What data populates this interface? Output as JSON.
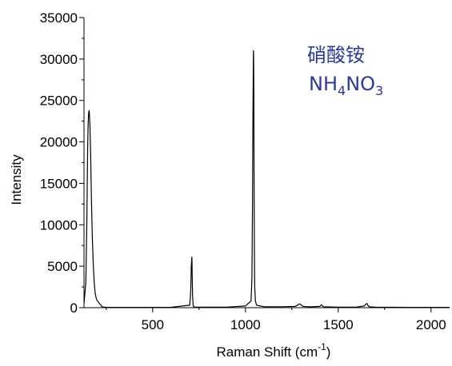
{
  "chart_data": {
    "type": "line",
    "title": "",
    "xlabel": "Raman Shift (cm",
    "xlabel_sup": "-1",
    "xlabel_suffix": ")",
    "ylabel": "Intensity",
    "xlim": [
      130,
      2100
    ],
    "ylim": [
      0,
      35000
    ],
    "x_ticks": [
      500,
      1000,
      1500,
      2000
    ],
    "x_tick_labels": [
      "500",
      "1000",
      "1500",
      "2000"
    ],
    "y_ticks": [
      0,
      5000,
      10000,
      15000,
      20000,
      25000,
      30000,
      35000
    ],
    "y_tick_labels": [
      "0",
      "5000",
      "10000",
      "15000",
      "20000",
      "25000",
      "30000",
      "35000"
    ],
    "grid": false,
    "line_color": "#000000",
    "series": [
      {
        "x": [
          130,
          140,
          145,
          150,
          153,
          155,
          158,
          162,
          166,
          170,
          175,
          180,
          185,
          190,
          195,
          200,
          210,
          215,
          220,
          225,
          230,
          235,
          240,
          250,
          300,
          400,
          500,
          600,
          700,
          705,
          708,
          711,
          712,
          713,
          715,
          718,
          722,
          730,
          800,
          900,
          1000,
          1030,
          1035,
          1038,
          1040,
          1042,
          1043,
          1044,
          1045,
          1046,
          1048,
          1050,
          1054,
          1060,
          1100,
          1200,
          1270,
          1280,
          1290,
          1300,
          1310,
          1350,
          1400,
          1405,
          1410,
          1415,
          1420,
          1500,
          1600,
          1640,
          1650,
          1655,
          1660,
          1670,
          1700,
          1800,
          1900,
          2000,
          2100
        ],
        "y": [
          500,
          3000,
          10000,
          19500,
          22500,
          23500,
          23800,
          22000,
          18000,
          13000,
          8500,
          5200,
          3000,
          1800,
          1200,
          900,
          600,
          450,
          350,
          150,
          100,
          80,
          70,
          50,
          40,
          40,
          40,
          50,
          300,
          2000,
          5000,
          6100,
          5600,
          4000,
          1500,
          300,
          100,
          60,
          60,
          70,
          200,
          800,
          3500,
          12000,
          22000,
          29000,
          31000,
          30500,
          26000,
          18000,
          7000,
          2500,
          800,
          300,
          120,
          120,
          150,
          300,
          450,
          350,
          150,
          100,
          150,
          250,
          350,
          200,
          120,
          60,
          80,
          200,
          450,
          500,
          250,
          100,
          60,
          50,
          40,
          40,
          40
        ]
      }
    ],
    "annotation": {
      "chinese": "硝酸铵",
      "formula_parts": [
        {
          "text": "NH",
          "sub": false
        },
        {
          "text": "4",
          "sub": true
        },
        {
          "text": "NO",
          "sub": false
        },
        {
          "text": "3",
          "sub": true
        }
      ],
      "color": "#2b3a9a"
    }
  }
}
